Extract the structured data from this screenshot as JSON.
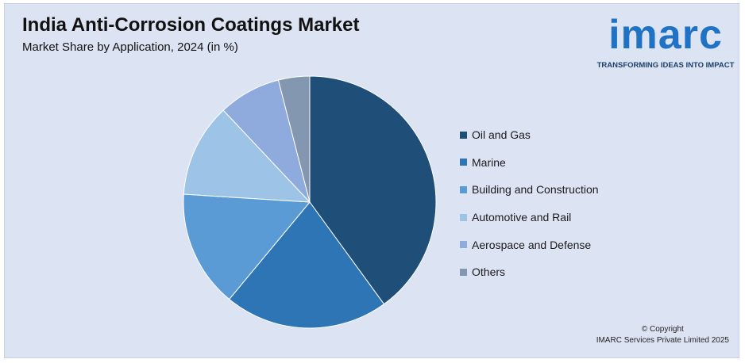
{
  "chart_data": {
    "type": "pie",
    "title": "India Anti-Corrosion Coatings Market",
    "subtitle": "Market Share by Application, 2024 (in %)",
    "slices": [
      {
        "label": "Oil and Gas",
        "value": 40,
        "color": "#1f4e79"
      },
      {
        "label": "Marine",
        "value": 21,
        "color": "#2e75b6"
      },
      {
        "label": "Building and Construction",
        "value": 15,
        "color": "#5b9bd5"
      },
      {
        "label": "Automotive and Rail",
        "value": 12,
        "color": "#9dc3e6"
      },
      {
        "label": "Aerospace and Defense",
        "value": 8,
        "color": "#8faadc"
      },
      {
        "label": "Others",
        "value": 4,
        "color": "#8497b0"
      }
    ],
    "legend_position": "right"
  },
  "logo": {
    "text": "imarc",
    "tagline": "TRANSFORMING IDEAS INTO IMPACT",
    "color": "#1f72c4"
  },
  "copyright": {
    "line1": "© Copyright",
    "line2": "IMARC Services Private Limited 2025"
  }
}
